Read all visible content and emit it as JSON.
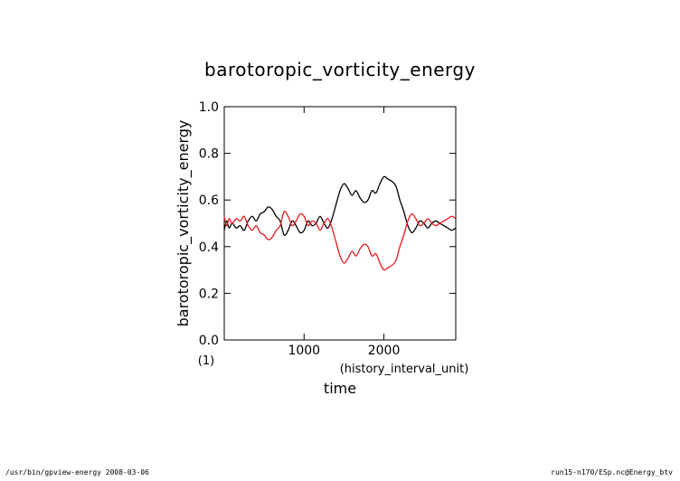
{
  "chart_data": {
    "type": "line",
    "title": "barotoropic_vorticity_energy",
    "xlabel": "time",
    "x_unit": "(history_interval_unit)",
    "ylabel": "barotoropic_vorticity_energy",
    "y_unit": "(1)",
    "xlim": [
      0,
      2900
    ],
    "ylim": [
      0,
      1
    ],
    "x_ticks": [
      1000,
      2000
    ],
    "x_tick_labels": [
      "1000",
      "2000"
    ],
    "y_ticks": [
      0,
      0.2,
      0.4,
      0.6,
      0.8,
      1.0
    ],
    "y_tick_labels": [
      "0.0",
      "0.2",
      "0.4",
      "0.6",
      "0.8",
      "1.0"
    ],
    "grid": false,
    "series": [
      {
        "color": "#000000",
        "x": [
          0,
          30,
          60,
          100,
          150,
          200,
          250,
          300,
          350,
          400,
          450,
          500,
          550,
          600,
          650,
          700,
          750,
          800,
          850,
          900,
          950,
          1000,
          1050,
          1100,
          1150,
          1200,
          1250,
          1300,
          1350,
          1400,
          1450,
          1500,
          1550,
          1600,
          1650,
          1700,
          1750,
          1800,
          1850,
          1900,
          1950,
          2000,
          2050,
          2100,
          2150,
          2200,
          2250,
          2300,
          2350,
          2400,
          2450,
          2500,
          2550,
          2600,
          2650,
          2700,
          2750,
          2800,
          2850,
          2900
        ],
        "values": [
          0.47,
          0.51,
          0.48,
          0.5,
          0.48,
          0.49,
          0.47,
          0.51,
          0.53,
          0.51,
          0.54,
          0.55,
          0.57,
          0.56,
          0.53,
          0.51,
          0.45,
          0.47,
          0.51,
          0.49,
          0.46,
          0.47,
          0.51,
          0.49,
          0.5,
          0.53,
          0.5,
          0.48,
          0.52,
          0.58,
          0.64,
          0.67,
          0.65,
          0.62,
          0.64,
          0.61,
          0.59,
          0.6,
          0.64,
          0.63,
          0.67,
          0.7,
          0.69,
          0.68,
          0.66,
          0.6,
          0.55,
          0.49,
          0.46,
          0.48,
          0.51,
          0.5,
          0.48,
          0.5,
          0.51,
          0.5,
          0.49,
          0.48,
          0.47,
          0.48
        ]
      },
      {
        "color": "#e8191e",
        "x": [
          0,
          30,
          60,
          100,
          150,
          200,
          250,
          300,
          350,
          400,
          450,
          500,
          550,
          600,
          650,
          700,
          750,
          800,
          850,
          900,
          950,
          1000,
          1050,
          1100,
          1150,
          1200,
          1250,
          1300,
          1350,
          1400,
          1450,
          1500,
          1550,
          1600,
          1650,
          1700,
          1750,
          1800,
          1850,
          1900,
          1950,
          2000,
          2050,
          2100,
          2150,
          2200,
          2250,
          2300,
          2350,
          2400,
          2450,
          2500,
          2550,
          2600,
          2650,
          2700,
          2750,
          2800,
          2850,
          2900
        ],
        "values": [
          0.53,
          0.49,
          0.52,
          0.5,
          0.52,
          0.51,
          0.53,
          0.49,
          0.47,
          0.49,
          0.46,
          0.45,
          0.43,
          0.44,
          0.47,
          0.49,
          0.55,
          0.53,
          0.49,
          0.51,
          0.54,
          0.53,
          0.49,
          0.51,
          0.5,
          0.47,
          0.5,
          0.52,
          0.48,
          0.42,
          0.36,
          0.33,
          0.35,
          0.38,
          0.36,
          0.39,
          0.41,
          0.4,
          0.36,
          0.37,
          0.33,
          0.3,
          0.31,
          0.32,
          0.34,
          0.4,
          0.45,
          0.51,
          0.54,
          0.52,
          0.49,
          0.5,
          0.52,
          0.5,
          0.49,
          0.5,
          0.51,
          0.52,
          0.53,
          0.52
        ]
      }
    ]
  },
  "footer": {
    "left": "/usr/bin/gpview-energy  2008-03-06",
    "right": "run15-n170/ESp.nc@Energy_btv"
  }
}
